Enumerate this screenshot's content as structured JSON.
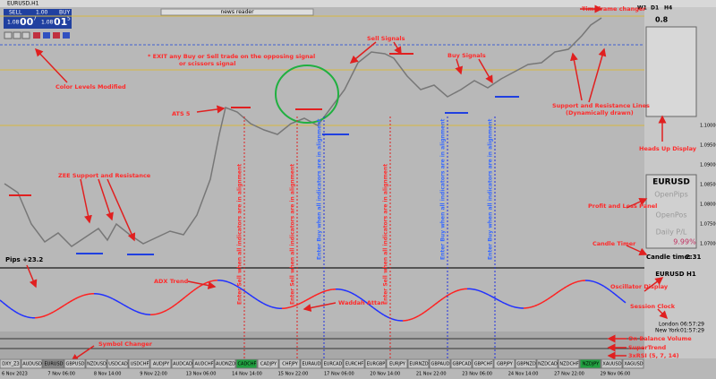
{
  "window": {
    "title": "EURUSD,H1",
    "news": "news reader",
    "sell": "SELL",
    "buy": "BUY",
    "lot": "1.00",
    "sell_small": "1.08",
    "sell_big": "00",
    "sell_sup": "7",
    "buy_small": "1.08",
    "buy_big": "01",
    "buy_sup": "5"
  },
  "annotations": [
    "Timeframe changer",
    "Sell Signals",
    "* EXIT any Buy or Sell trade on the opposing signal",
    "or scissors signal",
    "Buy Signals",
    "Color Levels Modified",
    "ATS 5",
    "Support and Resistance Lines",
    "(Dynamically drawn)",
    "Heads Up Display",
    "ZEE Support and Resistance",
    "Profit and Loss Panel",
    "Candle Timer",
    "ADX Trend",
    "Oscillator Display",
    "Session Clock",
    "Waddah Attar",
    "On Balance Volume",
    "SuperTrend",
    "3xRSI (5, 7, 14)",
    "Symbol Changer"
  ],
  "vertical_notes": [
    "Enter Sell when all indicators are in alignment",
    "Enter Sell when all indicators are in alignment",
    "Enter Buy when all indicators are in alignment",
    "Enter Sell when all indicators are in alignment",
    "Enter Buy when all indicators are in alignment",
    "Enter Buy when all indicators are in alignment"
  ],
  "timeframes": [
    "W1",
    "D1",
    "H4"
  ],
  "hud": {
    "spread": "0.8",
    "pair": "EURUSD",
    "open_pips": "OpenPips",
    "open_pos": "OpenPos",
    "daily": "Daily P/L",
    "daily_value": "9.99%",
    "candle_label": "Candle time:",
    "candle_value": "2:31",
    "pips": "Pips +23.2"
  },
  "oscillator_label": "EURUSD  H1",
  "clock": [
    {
      "city": "London",
      "time": "06:57:29"
    },
    {
      "city": "New York",
      "time": "01:57:29"
    }
  ],
  "symbols": [
    "DXY_Z3",
    "AUDUSD",
    "EURUSD",
    "GBPUSD",
    "NZDUSD",
    "USDCAD",
    "USDCHF",
    "AUDJPY",
    "AUDCAD",
    "AUDCHF",
    "AUDNZD",
    "CADCHF",
    "CADJPY",
    "CHFJPY",
    "EURAUD",
    "EURCAD",
    "EURCHF",
    "EURGBP",
    "EURJPY",
    "EURNZD",
    "GBPAUD",
    "GBPCAD",
    "GBPCHF",
    "GBPJPY",
    "GBPNZD",
    "NZDCAD",
    "NZDCHF",
    "NZDJPY",
    "XAUUSD",
    "XAGUSD"
  ],
  "dates": [
    "6 Nov 2023",
    "7 Nov 06:00",
    "8 Nov 14:00",
    "9 Nov 22:00",
    "13 Nov 06:00",
    "14 Nov 14:00",
    "15 Nov 22:00",
    "17 Nov 06:00",
    "20 Nov 14:00",
    "21 Nov 22:00",
    "23 Nov 06:00",
    "24 Nov 14:00",
    "27 Nov 22:00",
    "29 Nov 06:00"
  ],
  "price_labels": [
    "1.10000",
    "1.09500",
    "1.09000",
    "1.08500",
    "1.08000",
    "1.07500",
    "1.07000"
  ]
}
